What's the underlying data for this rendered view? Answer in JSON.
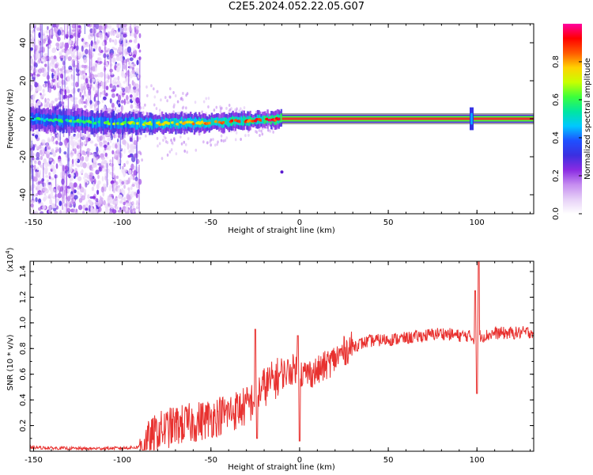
{
  "title": "C2E5.2024.052.22.05.G07",
  "colors": {
    "snr_line": "#e8312f",
    "spectrum_core": "#e8312f",
    "colorbar_stops": [
      "#ffffff",
      "#e6d0f7",
      "#c58cf0",
      "#8a2be2",
      "#3b2fe0",
      "#1e50ff",
      "#00c8ff",
      "#00e6a0",
      "#3cff3c",
      "#c8ff00",
      "#ffd200",
      "#ff5a00",
      "#ff0000",
      "#ff00a0"
    ]
  },
  "chart_data": [
    {
      "type": "heatmap",
      "name": "spectrogram",
      "xlabel": "Height of straight line (km)",
      "ylabel": "Frequency (Hz)",
      "xlim": [
        -152,
        132
      ],
      "ylim": [
        -50,
        50
      ],
      "xticks": [
        -150,
        -100,
        -50,
        0,
        50,
        100
      ],
      "yticks": [
        -40,
        -20,
        0,
        20,
        40
      ],
      "noise_region_x": [
        -152,
        -90
      ],
      "sparse_region_x": [
        -90,
        -10
      ],
      "stable_line_x": [
        -10,
        132
      ],
      "stable_line_freq": 0,
      "outlier_point": {
        "x": -10,
        "y": -28
      },
      "spike_x": 97,
      "colorbar": {
        "label": "Normalized spectral amplitude",
        "range": [
          0,
          1
        ],
        "ticks": [
          "0.0",
          "0.2",
          "0.4",
          "0.6",
          "0.8"
        ]
      }
    },
    {
      "type": "line",
      "name": "snr",
      "xlabel": "Height of straight line (km)",
      "ylabel": "SNR (10 * v/v)",
      "scale_label_prefix": "(x10",
      "scale_label_exp": "4",
      "scale_label_suffix": ")",
      "xlim": [
        -152,
        132
      ],
      "ylim": [
        0,
        1.48
      ],
      "xticks": [
        -150,
        -100,
        -50,
        0,
        50,
        100
      ],
      "yticks": [
        "0.2",
        "0.4",
        "0.6",
        "0.8",
        "1.0",
        "1.2",
        "1.4"
      ],
      "series": [
        {
          "x": [
            -152,
            -140,
            -120,
            -100,
            -92,
            -85,
            -80,
            -70,
            -60,
            -50,
            -40,
            -30,
            -26,
            -24,
            -20,
            -10,
            -2,
            0,
            2,
            10,
            20,
            25,
            30,
            40,
            50,
            60,
            70,
            80,
            90,
            95,
            98,
            99,
            100,
            101,
            102,
            105,
            110,
            120,
            132
          ],
          "y": [
            0.03,
            0.025,
            0.02,
            0.025,
            0.03,
            0.08,
            0.15,
            0.2,
            0.22,
            0.26,
            0.3,
            0.35,
            0.4,
            0.45,
            0.5,
            0.6,
            0.65,
            0.62,
            0.6,
            0.62,
            0.72,
            0.78,
            0.82,
            0.86,
            0.87,
            0.88,
            0.9,
            0.92,
            0.9,
            0.9,
            0.88,
            0.87,
            0.85,
            0.9,
            0.9,
            0.9,
            0.92,
            0.92,
            0.93
          ],
          "spikes": [
            {
              "x": -25,
              "y": 0.95
            },
            {
              "x": -24,
              "y": 0.1
            },
            {
              "x": -1,
              "y": 0.9
            },
            {
              "x": 0,
              "y": 0.08
            },
            {
              "x": 99,
              "y": 1.25
            },
            {
              "x": 100,
              "y": 0.45
            },
            {
              "x": 101,
              "y": 1.48
            }
          ]
        }
      ]
    }
  ]
}
